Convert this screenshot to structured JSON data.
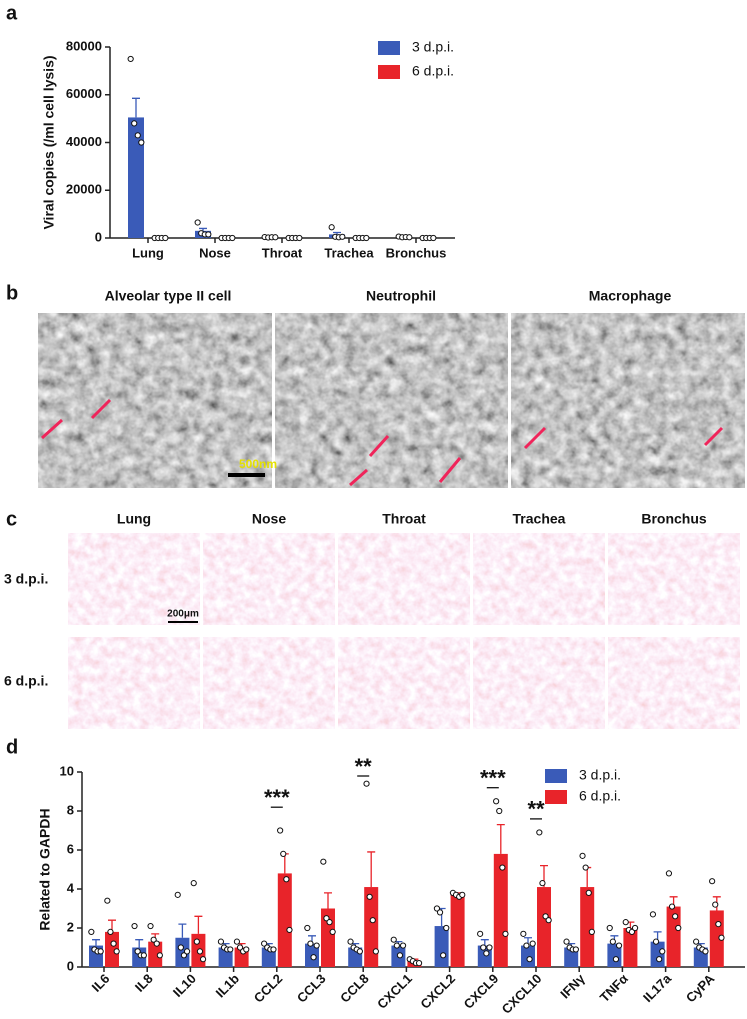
{
  "panel_labels": [
    "a",
    "b",
    "c",
    "d"
  ],
  "chart_data": [
    {
      "type": "bar",
      "ylabel": "Viral copies (/ml cell lysis)",
      "categories": [
        "Lung",
        "Nose",
        "Throat",
        "Trachea",
        "Bronchus"
      ],
      "series": [
        {
          "name": "3 d.p.i.",
          "color": "#3a5bb8",
          "values": [
            50500,
            3000,
            300,
            1500,
            400
          ],
          "errors": [
            8000,
            1000,
            100,
            800,
            100
          ],
          "points": [
            [
              75000,
              48000,
              43000,
              40000
            ],
            [
              6500,
              2000,
              1500,
              1500
            ],
            [
              400,
              200,
              300,
              300
            ],
            [
              4500,
              500,
              300,
              500
            ],
            [
              600,
              300,
              400,
              300
            ]
          ]
        },
        {
          "name": "6 d.p.i.",
          "color": "#e8242a",
          "values": [
            0,
            0,
            0,
            0,
            0
          ],
          "points": [
            [
              0,
              0,
              0,
              0
            ],
            [
              0,
              0,
              0,
              0
            ],
            [
              0,
              0,
              0,
              0
            ],
            [
              0,
              0,
              0,
              0
            ],
            [
              0,
              0,
              0,
              0
            ]
          ]
        }
      ],
      "ylim": [
        0,
        80000
      ],
      "yticks": [
        0,
        20000,
        40000,
        60000,
        80000
      ],
      "grid": false,
      "legend": "upper right"
    },
    {
      "type": "bar",
      "ylabel": "Related to GAPDH",
      "categories": [
        "IL6",
        "IL8",
        "IL10",
        "IL1b",
        "CCL2",
        "CCL3",
        "CCL8",
        "CXCL1",
        "CXCL2",
        "CXCL9",
        "CXCL10",
        "IFNγ",
        "TNFα",
        "IL17a",
        "CyPA"
      ],
      "series": [
        {
          "name": "3 d.p.i.",
          "color": "#3a5bb8",
          "values": [
            1.1,
            1.0,
            1.5,
            1.0,
            1.0,
            1.2,
            1.0,
            1.1,
            2.1,
            1.1,
            1.1,
            1.0,
            1.2,
            1.3,
            1.0
          ],
          "errors": [
            0.3,
            0.4,
            0.7,
            0.2,
            0.2,
            0.4,
            0.2,
            0.2,
            0.9,
            0.3,
            0.4,
            0.2,
            0.4,
            0.5,
            0.2
          ],
          "points": [
            [
              1.8,
              0.9,
              0.8,
              0.8
            ],
            [
              2.1,
              0.8,
              0.6,
              0.6
            ],
            [
              3.7,
              1.0,
              0.6,
              0.8
            ],
            [
              1.3,
              1.0,
              0.9,
              0.9
            ],
            [
              1.2,
              1.0,
              0.9,
              0.9
            ],
            [
              2.0,
              1.2,
              0.5,
              1.1
            ],
            [
              1.3,
              1.0,
              0.9,
              0.8
            ],
            [
              1.4,
              1.1,
              0.6,
              1.1
            ],
            [
              3.0,
              2.8,
              0.6,
              2.0
            ],
            [
              1.7,
              1.0,
              0.7,
              1.0
            ],
            [
              1.7,
              1.1,
              0.4,
              1.2
            ],
            [
              1.3,
              1.0,
              0.9,
              0.9
            ],
            [
              2.0,
              1.3,
              0.4,
              1.1
            ],
            [
              2.7,
              1.3,
              0.4,
              0.8
            ],
            [
              1.3,
              1.0,
              0.9,
              0.8
            ]
          ]
        },
        {
          "name": "6 d.p.i.",
          "color": "#e8242a",
          "values": [
            1.8,
            1.3,
            1.7,
            1.0,
            4.8,
            3.0,
            4.1,
            0.3,
            3.7,
            5.8,
            4.1,
            4.1,
            2.0,
            3.1,
            2.9
          ],
          "errors": [
            0.6,
            0.4,
            0.9,
            0.2,
            1.0,
            0.8,
            1.8,
            0.1,
            0.1,
            1.5,
            1.1,
            1.0,
            0.3,
            0.5,
            0.7
          ],
          "points": [
            [
              3.4,
              1.8,
              1.2,
              0.8
            ],
            [
              2.1,
              1.4,
              1.2,
              0.6
            ],
            [
              4.3,
              1.3,
              0.8,
              0.4
            ],
            [
              1.3,
              1.0,
              0.8,
              0.9
            ],
            [
              7.0,
              5.8,
              4.5,
              1.9
            ],
            [
              5.4,
              2.5,
              2.3,
              1.8
            ],
            [
              9.4,
              3.6,
              2.4,
              0.8
            ],
            [
              0.4,
              0.3,
              0.2,
              0.2
            ],
            [
              3.8,
              3.7,
              3.6,
              3.7
            ],
            [
              8.5,
              8.0,
              5.1,
              1.7
            ],
            [
              6.9,
              4.3,
              2.6,
              2.4
            ],
            [
              5.7,
              5.1,
              3.8,
              1.8
            ],
            [
              2.3,
              1.9,
              1.8,
              2.0
            ],
            [
              4.8,
              3.1,
              2.6,
              2.0
            ],
            [
              4.4,
              3.2,
              2.2,
              1.5
            ]
          ]
        }
      ],
      "annotations": [
        {
          "text": "***",
          "category": "CCL2",
          "y": 8.4
        },
        {
          "text": "**",
          "category": "CCL8",
          "y": 10.0
        },
        {
          "text": "***",
          "category": "CXCL9",
          "y": 9.4
        },
        {
          "text": "**",
          "category": "CXCL10",
          "y": 7.8
        }
      ],
      "ylim": [
        0,
        10
      ],
      "yticks": [
        0,
        2,
        4,
        6,
        8,
        10
      ],
      "grid": false,
      "legend": "upper right"
    }
  ],
  "micrographs": {
    "titles": [
      "Alveolar type II cell",
      "Neutrophil",
      "Macrophage"
    ],
    "scale_bar": "500nm"
  },
  "histology": {
    "columns": [
      "Lung",
      "Nose",
      "Throat",
      "Trachea",
      "Bronchus"
    ],
    "rows": [
      "3 d.p.i.",
      "6 d.p.i."
    ],
    "scale_bar": "200μm"
  }
}
